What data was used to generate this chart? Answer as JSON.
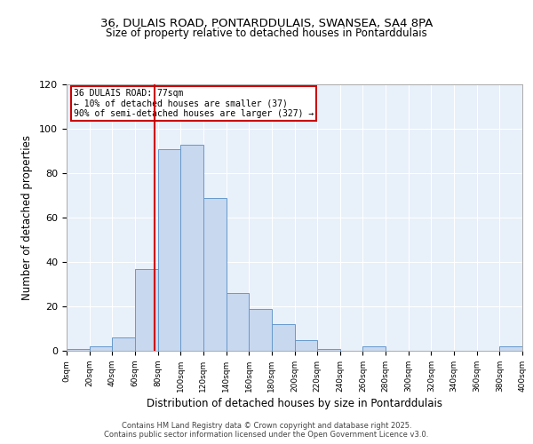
{
  "title1": "36, DULAIS ROAD, PONTARDDULAIS, SWANSEA, SA4 8PA",
  "title2": "Size of property relative to detached houses in Pontarddulais",
  "xlabel": "Distribution of detached houses by size in Pontarddulais",
  "ylabel": "Number of detached properties",
  "bar_color": "#c8d8ef",
  "bar_edge_color": "#6699cc",
  "bin_edges": [
    0,
    20,
    40,
    60,
    80,
    100,
    120,
    140,
    160,
    180,
    200,
    220,
    240,
    260,
    280,
    300,
    320,
    340,
    360,
    380,
    400
  ],
  "counts": [
    1,
    2,
    6,
    37,
    91,
    93,
    69,
    26,
    19,
    12,
    5,
    1,
    0,
    2,
    0,
    0,
    0,
    0,
    0,
    2
  ],
  "vline_x": 77,
  "vline_color": "#cc0000",
  "annotation_title": "36 DULAIS ROAD: 77sqm",
  "annotation_line1": "← 10% of detached houses are smaller (37)",
  "annotation_line2": "90% of semi-detached houses are larger (327) →",
  "annotation_box_color": "#ffffff",
  "annotation_box_edge": "#cc0000",
  "ylim": [
    0,
    120
  ],
  "yticks": [
    0,
    20,
    40,
    60,
    80,
    100,
    120
  ],
  "tick_labels": [
    "0sqm",
    "20sqm",
    "40sqm",
    "60sqm",
    "80sqm",
    "100sqm",
    "120sqm",
    "140sqm",
    "160sqm",
    "180sqm",
    "200sqm",
    "220sqm",
    "240sqm",
    "260sqm",
    "280sqm",
    "300sqm",
    "320sqm",
    "340sqm",
    "360sqm",
    "380sqm",
    "400sqm"
  ],
  "footer1": "Contains HM Land Registry data © Crown copyright and database right 2025.",
  "footer2": "Contains public sector information licensed under the Open Government Licence v3.0.",
  "bg_color": "#ffffff",
  "plot_bg_color": "#e8f0fa"
}
